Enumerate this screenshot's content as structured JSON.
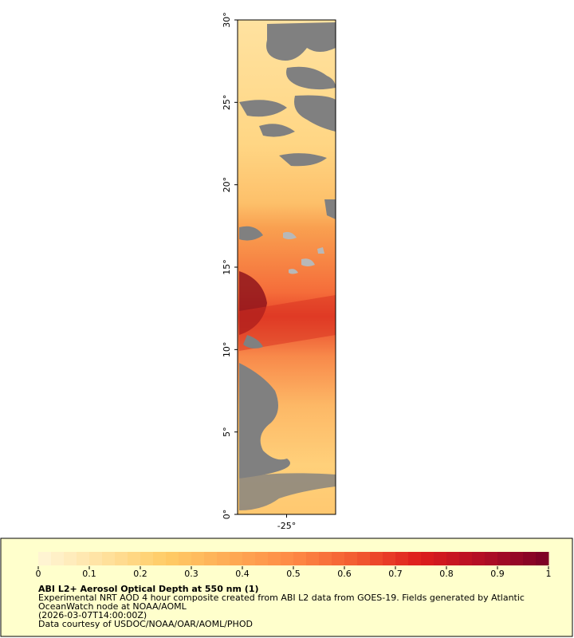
{
  "map": {
    "ylim": [
      0,
      30
    ],
    "yticks": [
      {
        "value": 0,
        "label": "0°"
      },
      {
        "value": 5,
        "label": "5°"
      },
      {
        "value": 10,
        "label": "10°"
      },
      {
        "value": 15,
        "label": "15°"
      },
      {
        "value": 20,
        "label": "20°"
      },
      {
        "value": 25,
        "label": "25°"
      },
      {
        "value": 30,
        "label": "30°"
      }
    ],
    "xlim": [
      -28,
      -22
    ],
    "xticks": [
      {
        "value": -25,
        "label": "-25°"
      }
    ]
  },
  "colorbar": {
    "lim": [
      0,
      1
    ],
    "ticks": [
      0,
      0.1,
      0.2,
      0.3,
      0.4,
      0.5,
      0.6,
      0.7,
      0.8,
      0.9,
      1
    ],
    "colors": [
      "#fff6d8",
      "#ffe2a0",
      "#ffcc66",
      "#feab55",
      "#fe8a45",
      "#f25a30",
      "#dd1c1c",
      "#b00d26",
      "#7a0025"
    ],
    "steps": 40
  },
  "legend": {
    "title": "ABI L2+ Aerosol Optical Depth at 550 nm (1)",
    "lines": [
      "Experimental NRT AOD 4 hour composite created from ABI L2 data from GOES-19. Fields generated by Atlantic",
      "OceanWatch node at NOAA/AOML",
      "(2026-03-07T14:00:00Z)",
      "Data courtesy of USDOC/NOAA/OAR/AOML/PHOD"
    ]
  }
}
